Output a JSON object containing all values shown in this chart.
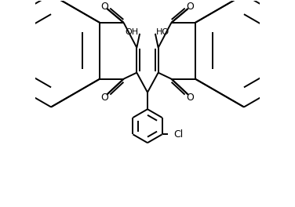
{
  "background_color": "#ffffff",
  "line_color": "#000000",
  "line_width": 1.4,
  "figsize": [
    3.76,
    2.64
  ],
  "dpi": 100,
  "xlim": [
    0,
    10
  ],
  "ylim": [
    -3.2,
    6.0
  ]
}
